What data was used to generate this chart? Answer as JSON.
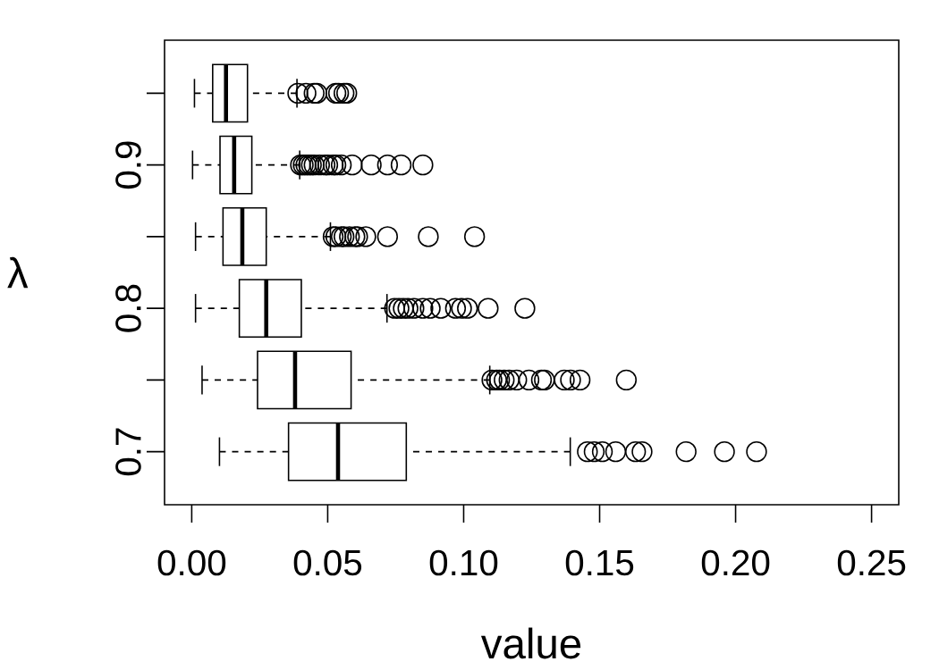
{
  "chart_data": {
    "type": "box",
    "orientation": "horizontal",
    "xlabel": "value",
    "ylabel": "λ",
    "categories": [
      null,
      "0.9",
      null,
      "0.8",
      null,
      "0.7"
    ],
    "boxes": [
      {
        "low": 0.001,
        "q1": 0.0077,
        "median": 0.0126,
        "q3": 0.0205,
        "high": 0.0387,
        "outliers": [
          0.039,
          0.042,
          0.045,
          0.046,
          0.053,
          0.054,
          0.056,
          0.057
        ]
      },
      {
        "low": 0.0003,
        "q1": 0.0104,
        "median": 0.0156,
        "q3": 0.0221,
        "high": 0.0397,
        "outliers": [
          0.04,
          0.041,
          0.042,
          0.043,
          0.044,
          0.045,
          0.047,
          0.049,
          0.05,
          0.052,
          0.053,
          0.055,
          0.059,
          0.066,
          0.072,
          0.077,
          0.085
        ]
      },
      {
        "low": 0.0014,
        "q1": 0.0115,
        "median": 0.0186,
        "q3": 0.0274,
        "high": 0.051,
        "outliers": [
          0.052,
          0.053,
          0.055,
          0.056,
          0.058,
          0.06,
          0.061,
          0.064,
          0.072,
          0.087,
          0.104
        ]
      },
      {
        "low": 0.0014,
        "q1": 0.0175,
        "median": 0.0274,
        "q3": 0.0403,
        "high": 0.0718,
        "outliers": [
          0.0746,
          0.0762,
          0.0778,
          0.0795,
          0.0817,
          0.085,
          0.0877,
          0.0916,
          0.097,
          0.0992,
          0.1014,
          0.109,
          0.1225
        ]
      },
      {
        "low": 0.0038,
        "q1": 0.0242,
        "median": 0.038,
        "q3": 0.0586,
        "high": 0.1096,
        "outliers": [
          0.1104,
          0.1121,
          0.1132,
          0.1149,
          0.1167,
          0.1195,
          0.124,
          0.1286,
          0.1297,
          0.137,
          0.1393,
          0.1428,
          0.1598
        ]
      },
      {
        "low": 0.0102,
        "q1": 0.0356,
        "median": 0.0538,
        "q3": 0.0789,
        "high": 0.1392,
        "outliers": [
          0.1455,
          0.148,
          0.151,
          0.1559,
          0.1632,
          0.1656,
          0.1818,
          0.1959,
          0.2077
        ]
      }
    ],
    "xlim": [
      -0.01,
      0.26
    ],
    "xticks": [
      {
        "value": 0,
        "label": "0.00"
      },
      {
        "value": 0.05,
        "label": "0.05"
      },
      {
        "value": 0.1,
        "label": "0.10"
      },
      {
        "value": 0.15,
        "label": "0.15"
      },
      {
        "value": 0.2,
        "label": "0.20"
      },
      {
        "value": 0.25,
        "label": "0.25"
      }
    ]
  }
}
